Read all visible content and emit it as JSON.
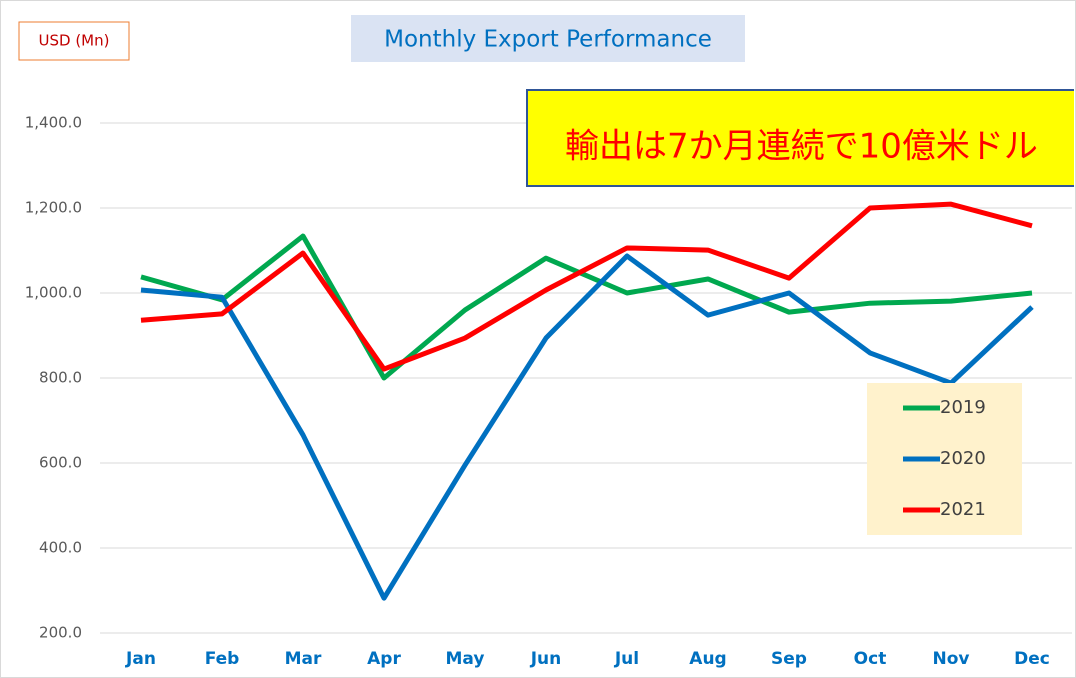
{
  "chart_data": {
    "type": "line",
    "title": "Monthly Export Performance",
    "unit_label": "USD (Mn)",
    "annotation": "輸出は7か月連続で10億米ドル",
    "categories": [
      "Jan",
      "Feb",
      "Mar",
      "Apr",
      "May",
      "Jun",
      "Jul",
      "Aug",
      "Sep",
      "Oct",
      "Nov",
      "Dec"
    ],
    "series": [
      {
        "name": "2019",
        "color": "#00a84f",
        "values": [
          1038,
          984,
          1134,
          800,
          960,
          1082,
          1000,
          1033,
          955,
          976,
          981,
          1000
        ]
      },
      {
        "name": "2020",
        "color": "#0070c0",
        "values": [
          1007,
          990,
          666,
          282,
          595,
          894,
          1087,
          948,
          1000,
          859,
          788,
          967
        ]
      },
      {
        "name": "2021",
        "color": "#ff0000",
        "values": [
          936,
          951,
          1094,
          821,
          894,
          1007,
          1106,
          1101,
          1035,
          1200,
          1209,
          1158
        ]
      }
    ],
    "ylim": [
      200,
      1400
    ],
    "yticks": [
      {
        "value": 200,
        "label": "200.0"
      },
      {
        "value": 400,
        "label": "400.0"
      },
      {
        "value": 600,
        "label": "600.0"
      },
      {
        "value": 800,
        "label": "800.0"
      },
      {
        "value": 1000,
        "label": "1,000.0"
      },
      {
        "value": 1200,
        "label": "1,200.0"
      },
      {
        "value": 1400,
        "label": "1,400.0"
      }
    ],
    "grid": true,
    "legend": "lower right"
  }
}
